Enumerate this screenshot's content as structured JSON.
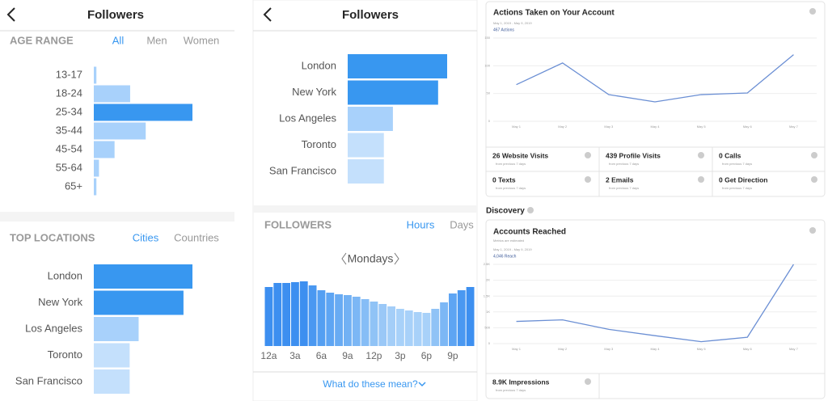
{
  "left": {
    "header": {
      "title": "Followers"
    },
    "age": {
      "title": "AGE RANGE",
      "tabs": [
        "All",
        "Men",
        "Women"
      ],
      "categories": [
        "13-17",
        "18-24",
        "25-34",
        "35-44",
        "45-54",
        "55-64",
        "65+"
      ],
      "values": [
        1,
        14,
        38,
        20,
        8,
        2,
        1
      ],
      "colors": [
        "#a8d1fb",
        "#a8d1fb",
        "#3897f0",
        "#a8d1fb",
        "#a8d1fb",
        "#a8d1fb",
        "#a8d1fb"
      ]
    },
    "locations": {
      "title": "TOP LOCATIONS",
      "tabs": [
        "Cities",
        "Countries"
      ],
      "categories": [
        "London",
        "New York",
        "Los Angeles",
        "Toronto",
        "San Francisco"
      ],
      "values": [
        11,
        10,
        5,
        4,
        4
      ],
      "colors": [
        "#3897f0",
        "#3897f0",
        "#a8d1fb",
        "#c4e0fc",
        "#c4e0fc"
      ]
    }
  },
  "middle": {
    "header": {
      "title": "Followers"
    },
    "locations": {
      "categories": [
        "London",
        "New York",
        "Los Angeles",
        "Toronto",
        "San Francisco"
      ],
      "values": [
        11,
        10,
        5,
        4,
        4
      ],
      "colors": [
        "#3897f0",
        "#3897f0",
        "#a8d1fb",
        "#c4e0fc",
        "#c4e0fc"
      ]
    },
    "hours": {
      "title": "FOLLOWERS",
      "tabs": [
        "Hours",
        "Days"
      ],
      "day": "Mondays",
      "values": [
        73,
        78,
        78,
        79,
        80,
        75,
        69,
        66,
        64,
        63,
        61,
        58,
        55,
        52,
        49,
        46,
        44,
        42,
        41,
        46,
        54,
        65,
        69,
        73
      ],
      "colors": [
        "#3d8ff0",
        "#3d8ff0",
        "#3d8ff0",
        "#3d8ff0",
        "#3d8ff0",
        "#4a98f1",
        "#549ff2",
        "#5ea5f3",
        "#68abf3",
        "#72b1f4",
        "#7cb7f5",
        "#86bdf6",
        "#90c3f6",
        "#9ac8f7",
        "#a4cef8",
        "#a8d1f9",
        "#a8d1f9",
        "#a8d1f9",
        "#a8d1f9",
        "#90c3f6",
        "#7cb7f5",
        "#5ea5f3",
        "#4a98f1",
        "#3d8ff0"
      ],
      "labels": [
        "12a",
        "3a",
        "6a",
        "9a",
        "12p",
        "3p",
        "6p",
        "9p"
      ],
      "link": "What do these mean?"
    }
  },
  "right": {
    "actions": {
      "title": "Actions Taken on Your Account",
      "date": "May 1, 2019 - May 9, 2019",
      "total": "467 Actions",
      "chart": {
        "type": "line",
        "categories": [
          "May 1",
          "May 2",
          "May 3",
          "May 4",
          "May 5",
          "May 6",
          "May 7"
        ],
        "values": [
          66,
          105,
          48,
          35,
          48,
          51,
          120
        ],
        "color": "#6b8fd4",
        "ylim": [
          0,
          150
        ],
        "yticks": [
          0,
          50,
          100,
          150
        ]
      },
      "metrics": [
        {
          "label": "26 Website Visits",
          "change": "from previous 7 days"
        },
        {
          "label": "439 Profile Visits",
          "change": "from previous 7 days"
        },
        {
          "label": "0 Calls",
          "change": "from previous 7 days"
        },
        {
          "label": "0 Texts",
          "change": "from previous 7 days"
        },
        {
          "label": "2 Emails",
          "change": "from previous 7 days"
        },
        {
          "label": "0 Get Direction",
          "change": "from previous 7 days"
        }
      ]
    },
    "discovery": "Discovery",
    "reached": {
      "title": "Accounts Reached",
      "note": "Metrics are estimated",
      "date": "May 1, 2019 - May 9, 2019",
      "total": "4,046 Reach",
      "chart": {
        "type": "line",
        "categories": [
          "May 1",
          "May 2",
          "May 3",
          "May 4",
          "May 5",
          "May 6",
          "May 7"
        ],
        "values": [
          700,
          750,
          450,
          250,
          60,
          200,
          2500
        ],
        "color": "#6b8fd4",
        "ylim": [
          0,
          2500
        ],
        "yticks": [
          0,
          500,
          {
            "value": 1000,
            "label": "1K"
          },
          {
            "value": 1500,
            "label": "1.5K"
          },
          {
            "value": 2000,
            "label": "2K"
          },
          {
            "value": 2500,
            "label": "2.5K"
          }
        ]
      },
      "metrics": [
        {
          "label": "8.9K Impressions",
          "change": "from previous 7 days"
        }
      ]
    }
  }
}
